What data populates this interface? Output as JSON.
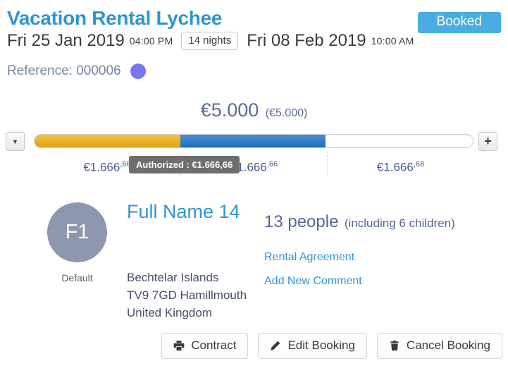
{
  "header": {
    "title": "Vacation Rental Lychee",
    "status_badge": "Booked",
    "checkin_date": "Fri 25 Jan 2019",
    "checkin_time": "04:00 PM",
    "nights": "14 nights",
    "checkout_date": "Fri 08 Feb 2019",
    "checkout_time": "10:00 AM",
    "reference_label": "Reference: 000006"
  },
  "payment": {
    "total": "€5.000",
    "total_secondary": "(€5.000)",
    "minus_label": "▼",
    "plus_label": "+",
    "tooltip": "Authorized : €1.666,66",
    "installments": [
      {
        "main": "€1.666",
        "sup": ",66"
      },
      {
        "main": "€1.666",
        "sup": ",66"
      },
      {
        "main": "€1.666",
        "sup": ",68"
      }
    ],
    "segments": {
      "authorized_pct": 33.2,
      "paid_pct": 33.2
    },
    "colors": {
      "authorized": "#ecb22a",
      "paid": "#2e7fc6"
    }
  },
  "guest": {
    "avatar_initials": "F1",
    "avatar_tag": "Default",
    "name": "Full Name 14",
    "address_lines": [
      "Bechtelar Islands",
      "TV9 7GD Hamillmouth",
      "United Kingdom"
    ],
    "people": "13 people",
    "people_detail": "(including 6 children)",
    "links": [
      "Rental Agreement",
      "Add New Comment"
    ]
  },
  "actions": [
    {
      "label": "Contract",
      "icon": "printer-icon"
    },
    {
      "label": "Edit Booking",
      "icon": "pencil-icon"
    },
    {
      "label": "Cancel Booking",
      "icon": "trash-icon"
    }
  ]
}
